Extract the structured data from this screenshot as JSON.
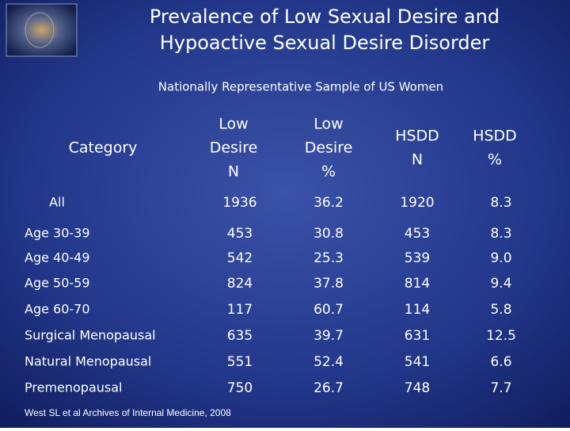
{
  "header": {
    "title": [
      "Prevalence of Low Sexual Desire and",
      "Hypoactive Sexual Desire Disorder"
    ],
    "subtitle": "Nationally Representative Sample of US Women"
  },
  "table": {
    "columns": [
      [
        "Category"
      ],
      [
        "Low",
        "Desire",
        "N"
      ],
      [
        "Low",
        "Desire",
        "%"
      ],
      [
        "HSDD",
        "N"
      ],
      [
        "HSDD",
        "%"
      ]
    ],
    "rows": [
      [
        "All",
        "1936",
        "36.2",
        "1920",
        "8.3"
      ],
      [
        "Age 30-39",
        "453",
        "30.8",
        "453",
        "8.3"
      ],
      [
        "Age 40-49",
        "542",
        "25.3",
        "539",
        "9.0"
      ],
      [
        "Age 50-59",
        "824",
        "37.8",
        "814",
        "9.4"
      ],
      [
        "Age 60-70",
        "117",
        "60.7",
        "114",
        "5.8"
      ],
      [
        "Surgical Menopausal",
        "635",
        "39.7",
        "631",
        "12.5"
      ],
      [
        "Natural Menopausal",
        "551",
        "52.4",
        "541",
        "6.6"
      ],
      [
        "Premenopausal",
        "750",
        "26.7",
        "748",
        "7.7"
      ]
    ]
  },
  "footnote": "West SL et al Archives of Internal Medicine, 2008"
}
